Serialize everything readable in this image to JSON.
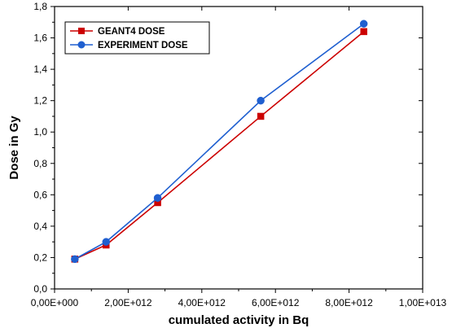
{
  "chart_data": {
    "type": "line",
    "xlabel": "cumulated activity in Bq",
    "ylabel": "Dose in Gy",
    "xlim": [
      0,
      10000000000000
    ],
    "ylim": [
      0,
      1.8
    ],
    "x_ticks": [
      0,
      2000000000000,
      4000000000000,
      6000000000000,
      8000000000000,
      10000000000000
    ],
    "x_tick_labels": [
      "0,00E+000",
      "2,00E+012",
      "4,00E+012",
      "6,00E+012",
      "8,00E+012",
      "1,00E+013"
    ],
    "y_ticks": [
      0,
      0.2,
      0.4,
      0.6,
      0.8,
      1.0,
      1.2,
      1.4,
      1.6,
      1.8
    ],
    "y_tick_labels": [
      "0,0",
      "0,2",
      "0,4",
      "0,6",
      "0,8",
      "1,0",
      "1,2",
      "1,4",
      "1,6",
      "1,8"
    ],
    "grid": false,
    "legend_position": "top-left",
    "series": [
      {
        "name": "GEANT4 DOSE",
        "color": "#cc0000",
        "marker": "square",
        "points": [
          {
            "x": 550000000000,
            "y": 0.19
          },
          {
            "x": 1400000000000,
            "y": 0.28
          },
          {
            "x": 2800000000000,
            "y": 0.55
          },
          {
            "x": 5600000000000,
            "y": 1.1
          },
          {
            "x": 8400000000000,
            "y": 1.64
          }
        ]
      },
      {
        "name": "EXPERIMENT DOSE",
        "color": "#1f5fd0",
        "marker": "circle",
        "points": [
          {
            "x": 550000000000,
            "y": 0.19
          },
          {
            "x": 1400000000000,
            "y": 0.3
          },
          {
            "x": 2800000000000,
            "y": 0.58
          },
          {
            "x": 5600000000000,
            "y": 1.2
          },
          {
            "x": 8400000000000,
            "y": 1.69
          }
        ]
      }
    ]
  }
}
